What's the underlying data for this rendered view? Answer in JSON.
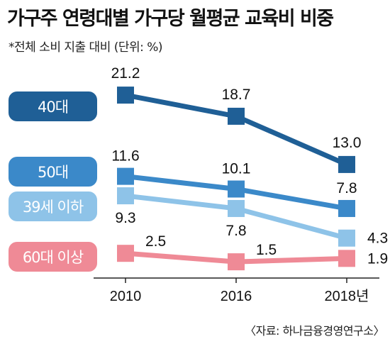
{
  "title": "가구주 연령대별 가구당 월평균 교육비 비중",
  "subtitle": "*전체 소비 지출 대비 (단위: %)",
  "source": "〈자료: 하나금융경영연구소〉",
  "chart_data": {
    "type": "line",
    "x": [
      "2010",
      "2016",
      "2018년"
    ],
    "ylim": [
      0,
      24
    ],
    "grid": false,
    "legend": "left",
    "series": [
      {
        "name": "40대",
        "values": [
          21.2,
          18.7,
          13.0
        ],
        "value_labels": [
          "21.2",
          "18.7",
          "13.0"
        ],
        "color": "#1f5f96"
      },
      {
        "name": "50대",
        "values": [
          11.6,
          10.1,
          7.8
        ],
        "value_labels": [
          "11.6",
          "10.1",
          "7.8"
        ],
        "color": "#3b89c9"
      },
      {
        "name": "39세 이하",
        "values": [
          9.3,
          7.8,
          4.3
        ],
        "value_labels": [
          "9.3",
          "7.8",
          "4.3"
        ],
        "color": "#8ec3e8"
      },
      {
        "name": "60대 이상",
        "values": [
          2.5,
          1.5,
          1.9
        ],
        "value_labels": [
          "2.5",
          "1.5",
          "1.9"
        ],
        "color": "#ef8a96"
      }
    ]
  }
}
